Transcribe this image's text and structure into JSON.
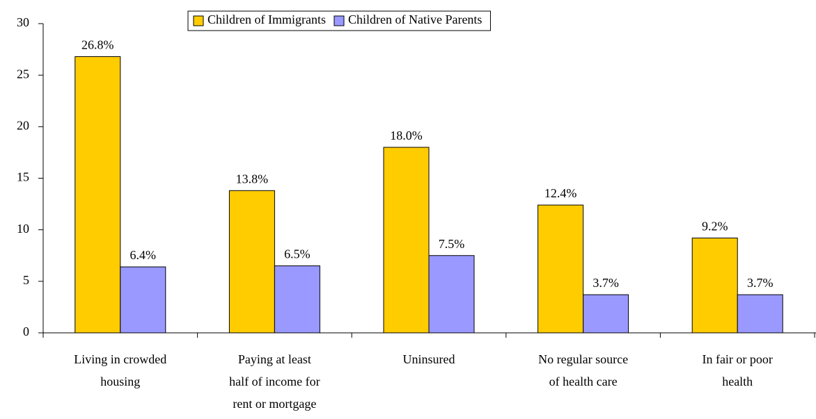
{
  "chart_data": {
    "type": "bar",
    "categories": [
      [
        "Living in crowded",
        "housing"
      ],
      [
        "Paying at least",
        "half of income for",
        "rent or mortgage"
      ],
      [
        "Uninsured"
      ],
      [
        "No regular source",
        "of health care"
      ],
      [
        "In fair or poor",
        "health"
      ]
    ],
    "series": [
      {
        "name": "Children of Immigrants",
        "color": "#ffcc00",
        "values": [
          26.8,
          13.8,
          18.0,
          12.4,
          9.2
        ],
        "value_labels": [
          "26.8%",
          "13.8%",
          "18.0%",
          "12.4%",
          "9.2%"
        ]
      },
      {
        "name": "Children of Native Parents",
        "color": "#9999ff",
        "values": [
          6.4,
          6.5,
          7.5,
          3.7,
          3.7
        ],
        "value_labels": [
          "6.4%",
          "6.5%",
          "7.5%",
          "3.7%",
          "3.7%"
        ]
      }
    ],
    "ylim": [
      0,
      30
    ],
    "yticks": [
      0,
      5,
      10,
      15,
      20,
      25,
      30
    ],
    "legend": "top"
  }
}
